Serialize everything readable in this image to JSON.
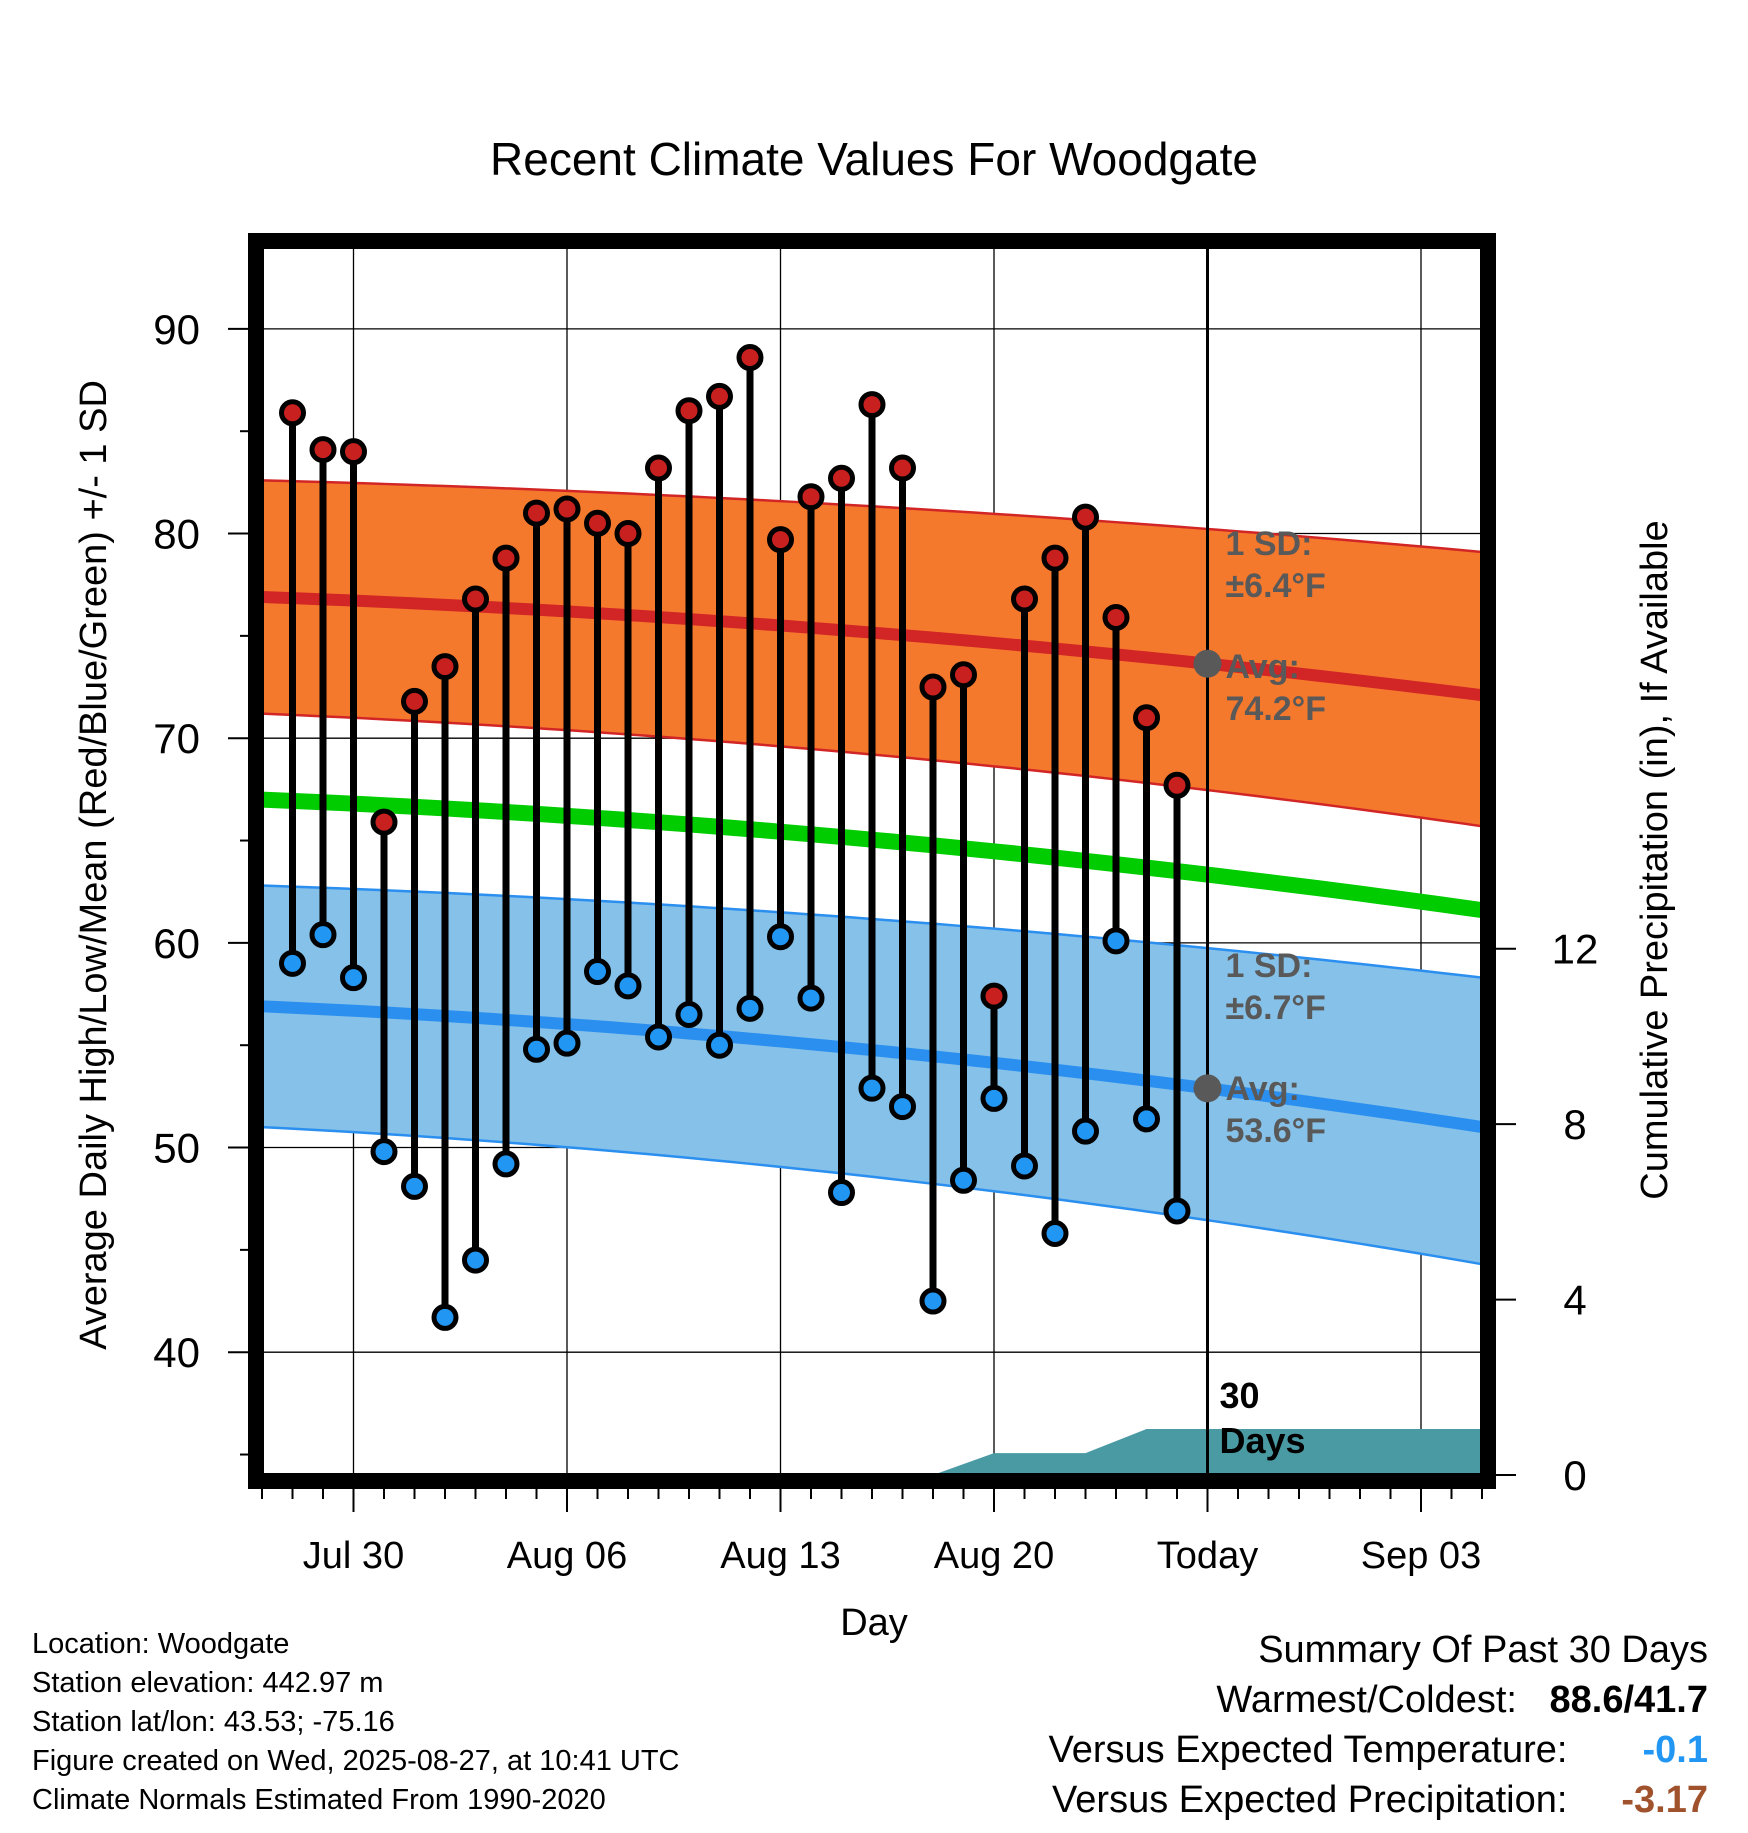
{
  "chart_data": {
    "type": "line",
    "title": "Recent Climate Values For Woodgate",
    "xlabel": "Day",
    "ylabel": "Average Daily High/Low/Mean (Red/Blue/Green) +/- 1 SD",
    "y2label": "Cumulative Precipitation (in), If Available",
    "ylim": [
      34,
      94
    ],
    "y2lim": [
      0,
      28
    ],
    "yticks": [
      40,
      50,
      60,
      70,
      80,
      90
    ],
    "y2ticks": [
      0,
      4,
      8,
      12
    ],
    "x_ticks": [
      "Jul 30",
      "Aug 06",
      "Aug 13",
      "Aug 20",
      "Today",
      "Sep 03"
    ],
    "x_range_days": [
      "Jul 27",
      "Sep 05"
    ],
    "today": "Aug 27",
    "grid": true,
    "daily_observations": {
      "dates": [
        "Jul 28",
        "Jul 29",
        "Jul 30",
        "Jul 31",
        "Aug 01",
        "Aug 02",
        "Aug 03",
        "Aug 04",
        "Aug 05",
        "Aug 06",
        "Aug 07",
        "Aug 08",
        "Aug 09",
        "Aug 10",
        "Aug 11",
        "Aug 12",
        "Aug 13",
        "Aug 14",
        "Aug 15",
        "Aug 16",
        "Aug 17",
        "Aug 18",
        "Aug 19",
        "Aug 20",
        "Aug 21",
        "Aug 22",
        "Aug 23",
        "Aug 24",
        "Aug 25",
        "Aug 26"
      ],
      "high": [
        85.9,
        84.1,
        84.0,
        65.9,
        71.8,
        73.5,
        76.8,
        78.8,
        81.0,
        81.2,
        80.5,
        80.0,
        83.2,
        86.0,
        86.7,
        88.6,
        79.7,
        81.8,
        82.7,
        86.3,
        83.2,
        72.5,
        73.1,
        57.4,
        76.8,
        78.8,
        80.8,
        75.9,
        71.0,
        67.7
      ],
      "low": [
        59.0,
        60.4,
        58.3,
        49.8,
        48.1,
        41.7,
        44.5,
        49.2,
        54.8,
        55.1,
        58.6,
        57.9,
        55.4,
        56.5,
        55.0,
        56.8,
        60.3,
        57.3,
        47.8,
        52.9,
        52.0,
        42.5,
        48.4,
        52.4,
        49.1,
        45.8,
        50.8,
        60.1,
        51.4,
        46.9
      ]
    },
    "normals": {
      "high_avg": [
        76.9,
        72.1
      ],
      "high_sd_upper": [
        82.6,
        79.1
      ],
      "high_sd_lower": [
        71.2,
        65.7
      ],
      "mean_avg": [
        67.0,
        61.6
      ],
      "low_avg": [
        56.9,
        51.0
      ],
      "low_sd_upper": [
        62.8,
        58.3
      ],
      "low_sd_lower": [
        51.0,
        44.3
      ]
    },
    "precipitation_cumulative": {
      "dates": [
        "Aug 18",
        "Aug 20",
        "Aug 23",
        "Aug 25",
        "Sep 05"
      ],
      "values": [
        0,
        0.5,
        0.5,
        1.05,
        1.05
      ]
    },
    "colors": {
      "high_band": "#f5792d",
      "high_line": "#d22525",
      "mean_line": "#00cc00",
      "low_band": "#85c1e8",
      "low_line": "#2b8ff0",
      "high_marker": "#c8201f",
      "low_marker": "#2196f3",
      "precip": "#4a9aa3",
      "annotation": "#595959"
    },
    "annotations": {
      "high_sd_label": "1 SD:",
      "high_sd_value": "±6.4°F",
      "high_avg_label": "Avg:",
      "high_avg_value": "74.2°F",
      "low_sd_label": "1 SD:",
      "low_sd_value": "±6.7°F",
      "low_avg_label": "Avg:",
      "low_avg_value": "53.6°F",
      "days_line1": "30",
      "days_line2": "Days"
    }
  },
  "footer": {
    "location": "Location: Woodgate",
    "elevation": "Station elevation: 442.97 m",
    "latlon": "Station lat/lon: 43.53; -75.16",
    "created": "Figure created on Wed, 2025-08-27, at 10:41 UTC",
    "normals": "Climate Normals Estimated From 1990-2020"
  },
  "summary": {
    "heading": "Summary Of Past 30 Days",
    "warmest_label": "Warmest/Coldest:",
    "warmest_value": "88.6/41.7",
    "temp_label": "Versus Expected Temperature:",
    "temp_value": "-0.1",
    "precip_label": "Versus Expected Precipitation:",
    "precip_value": "-3.17"
  }
}
